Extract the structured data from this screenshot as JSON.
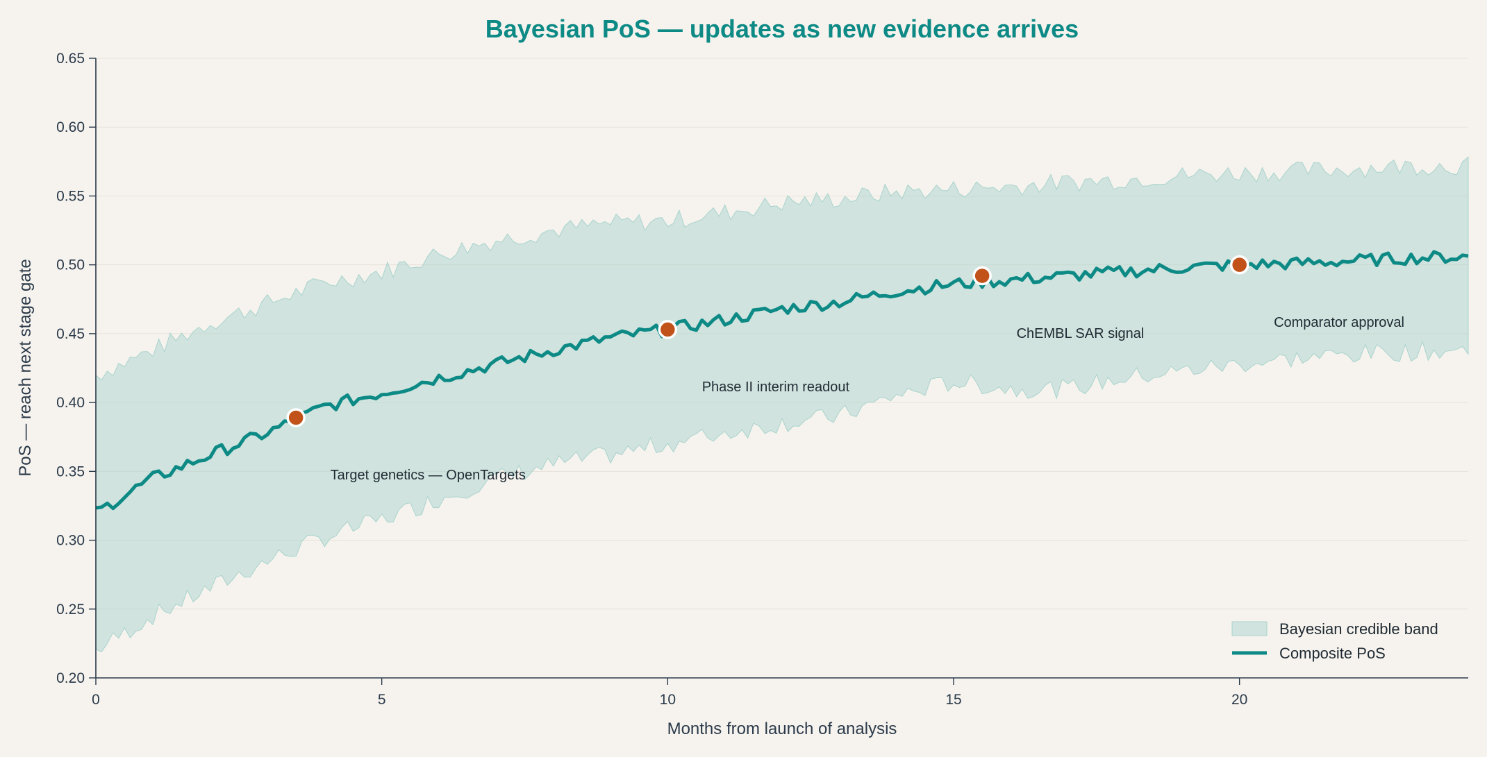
{
  "chart_data": {
    "type": "line",
    "title": "Bayesian PoS — updates as new evidence arrives",
    "xlabel": "Months from launch of analysis",
    "ylabel": "PoS — reach next stage gate",
    "xlim": [
      0,
      24
    ],
    "ylim": [
      0.2,
      0.65
    ],
    "x_ticks": [
      "0",
      "5",
      "10",
      "15",
      "20"
    ],
    "y_ticks": [
      "0.20",
      "0.25",
      "0.30",
      "0.35",
      "0.40",
      "0.45",
      "0.50",
      "0.55",
      "0.60",
      "0.65"
    ],
    "grid": "horizontal",
    "legend_position": "bottom-right",
    "colors": {
      "line": "#0d8a85",
      "band": "#a9d3cd",
      "marker": "#c0521a",
      "axis": "#2b3a4a"
    },
    "series": [
      {
        "name": "Composite PoS",
        "x": [
          0,
          1,
          2,
          3,
          4,
          5,
          6,
          7,
          8,
          9,
          10,
          11,
          12,
          13,
          14,
          15,
          16,
          17,
          18,
          19,
          20,
          21,
          22,
          23,
          24
        ],
        "values": [
          0.32,
          0.345,
          0.362,
          0.378,
          0.397,
          0.407,
          0.418,
          0.428,
          0.438,
          0.447,
          0.453,
          0.46,
          0.468,
          0.473,
          0.481,
          0.486,
          0.489,
          0.492,
          0.495,
          0.498,
          0.5,
          0.501,
          0.503,
          0.505,
          0.506
        ]
      },
      {
        "name": "Bayesian credible band",
        "x": [
          0,
          1,
          2,
          3,
          4,
          5,
          6,
          7,
          8,
          9,
          10,
          11,
          12,
          13,
          14,
          15,
          16,
          17,
          18,
          19,
          20,
          21,
          22,
          23,
          24
        ],
        "lower": [
          0.22,
          0.245,
          0.265,
          0.285,
          0.302,
          0.315,
          0.33,
          0.345,
          0.355,
          0.362,
          0.37,
          0.378,
          0.385,
          0.39,
          0.405,
          0.415,
          0.41,
          0.41,
          0.418,
          0.423,
          0.428,
          0.432,
          0.435,
          0.437,
          0.438
        ],
        "upper": [
          0.42,
          0.438,
          0.458,
          0.472,
          0.487,
          0.495,
          0.508,
          0.518,
          0.525,
          0.53,
          0.532,
          0.538,
          0.545,
          0.548,
          0.553,
          0.555,
          0.557,
          0.56,
          0.562,
          0.565,
          0.567,
          0.568,
          0.57,
          0.572,
          0.572
        ]
      }
    ],
    "events": [
      {
        "x": 3.5,
        "y": 0.389,
        "label": "Target genetics — OpenTargets",
        "lx": 4.1,
        "ly": 0.344
      },
      {
        "x": 10.0,
        "y": 0.453,
        "label": "Phase II interim readout",
        "lx": 10.6,
        "ly": 0.408
      },
      {
        "x": 15.5,
        "y": 0.492,
        "label": "ChEMBL SAR signal",
        "lx": 16.1,
        "ly": 0.447
      },
      {
        "x": 20.0,
        "y": 0.5,
        "label": "Comparator approval",
        "lx": 20.6,
        "ly": 0.455
      }
    ],
    "legend": [
      {
        "label": "Bayesian credible band",
        "kind": "band"
      },
      {
        "label": "Composite PoS",
        "kind": "line"
      }
    ]
  }
}
